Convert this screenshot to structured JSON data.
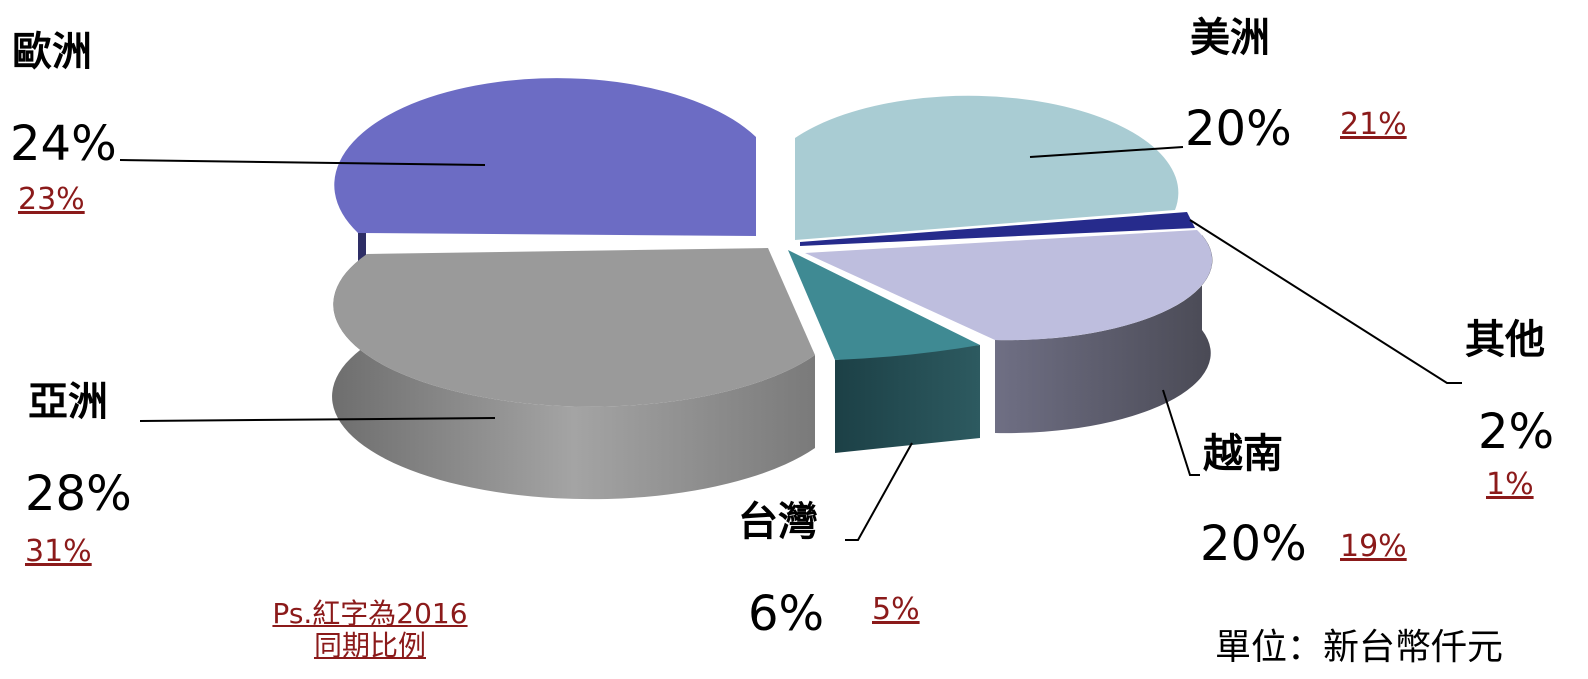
{
  "chart_data": {
    "type": "pie",
    "style": "3d-exploded",
    "slices": [
      {
        "key": "america",
        "label": "美洲",
        "value": 20,
        "value_text": "20%",
        "previous_text": "21%",
        "color": "#a9ccd3"
      },
      {
        "key": "other",
        "label": "其他",
        "value": 2,
        "value_text": "2%",
        "previous_text": "1%",
        "color": "#262b8c"
      },
      {
        "key": "vietnam",
        "label": "越南",
        "value": 20,
        "value_text": "20%",
        "previous_text": "19%",
        "color": "#bebede"
      },
      {
        "key": "taiwan",
        "label": "台灣",
        "value": 6,
        "value_text": "6%",
        "previous_text": "5%",
        "color": "#3f8a93"
      },
      {
        "key": "asia",
        "label": "亞洲",
        "value": 28,
        "value_text": "28%",
        "previous_text": "31%",
        "color": "#9a9a9a"
      },
      {
        "key": "europe",
        "label": "歐洲",
        "value": 24,
        "value_text": "24%",
        "previous_text": "23%",
        "color": "#6c6cc4"
      }
    ],
    "note": [
      "Ps.紅字為2016",
      "同期比例"
    ],
    "unit": "單位：新台幣仟元",
    "previous_color": "#8b1a1a"
  }
}
